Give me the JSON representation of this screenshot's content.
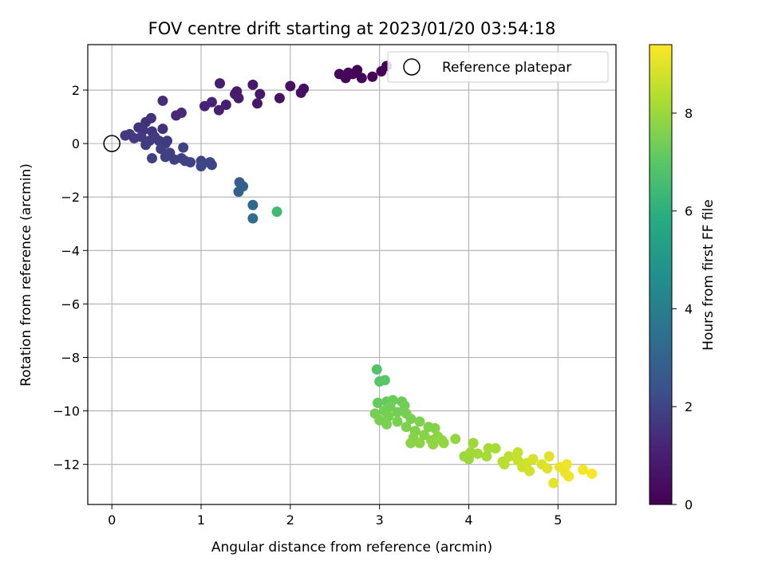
{
  "chart_data": {
    "type": "scatter",
    "title": "FOV centre drift starting at 2023/01/20 03:54:18",
    "xlabel": "Angular distance from reference (arcmin)",
    "ylabel": "Rotation from reference (arcmin)",
    "xlim": [
      -0.27,
      5.65
    ],
    "ylim": [
      -13.5,
      3.7
    ],
    "xticks": [
      0,
      1,
      2,
      3,
      4,
      5
    ],
    "yticks": [
      -12,
      -10,
      -8,
      -6,
      -4,
      -2,
      0,
      2
    ],
    "grid": true,
    "legend": {
      "placement": "top-right",
      "entries": [
        "Reference platepar"
      ]
    },
    "reference_point": {
      "x": 0,
      "y": 0
    },
    "colorbar": {
      "label": "Hours from first FF file",
      "min": 0,
      "max": 9.4,
      "ticks": [
        0,
        2,
        4,
        6,
        8
      ],
      "colormap": "viridis"
    },
    "points": [
      {
        "x": 2.55,
        "y": 2.6,
        "c": 0.2
      },
      {
        "x": 2.62,
        "y": 2.45,
        "c": 0.2
      },
      {
        "x": 2.7,
        "y": 2.6,
        "c": 0.15
      },
      {
        "x": 2.75,
        "y": 2.75,
        "c": 0.1
      },
      {
        "x": 2.8,
        "y": 2.45,
        "c": 0.1
      },
      {
        "x": 2.92,
        "y": 2.5,
        "c": 0.1
      },
      {
        "x": 3.02,
        "y": 2.7,
        "c": 0.05
      },
      {
        "x": 3.08,
        "y": 2.9,
        "c": 0.05
      },
      {
        "x": 2.65,
        "y": 2.65,
        "c": 0.2
      },
      {
        "x": 2.0,
        "y": 2.15,
        "c": 0.55
      },
      {
        "x": 2.15,
        "y": 2.05,
        "c": 0.55
      },
      {
        "x": 2.12,
        "y": 1.9,
        "c": 0.5
      },
      {
        "x": 1.88,
        "y": 1.7,
        "c": 0.6
      },
      {
        "x": 1.58,
        "y": 2.2,
        "c": 0.75
      },
      {
        "x": 1.66,
        "y": 1.85,
        "c": 0.75
      },
      {
        "x": 1.63,
        "y": 1.5,
        "c": 0.75
      },
      {
        "x": 1.38,
        "y": 1.85,
        "c": 0.9
      },
      {
        "x": 1.4,
        "y": 1.95,
        "c": 0.9
      },
      {
        "x": 1.42,
        "y": 1.7,
        "c": 0.9
      },
      {
        "x": 1.21,
        "y": 2.25,
        "c": 1.0
      },
      {
        "x": 1.28,
        "y": 1.45,
        "c": 1.0
      },
      {
        "x": 1.2,
        "y": 1.25,
        "c": 1.05
      },
      {
        "x": 1.12,
        "y": 1.55,
        "c": 1.1
      },
      {
        "x": 1.04,
        "y": 1.4,
        "c": 1.15
      },
      {
        "x": 0.78,
        "y": 1.15,
        "c": 1.3
      },
      {
        "x": 0.72,
        "y": 1.05,
        "c": 1.3
      },
      {
        "x": 0.57,
        "y": 1.6,
        "c": 1.4
      },
      {
        "x": 0.57,
        "y": 0.55,
        "c": 1.5
      },
      {
        "x": 0.44,
        "y": 0.95,
        "c": 1.5
      },
      {
        "x": 0.38,
        "y": 0.8,
        "c": 1.5
      },
      {
        "x": 0.3,
        "y": 0.6,
        "c": 1.6
      },
      {
        "x": 0.35,
        "y": 0.5,
        "c": 1.6
      },
      {
        "x": 0.45,
        "y": 0.45,
        "c": 1.6
      },
      {
        "x": 0.2,
        "y": 0.35,
        "c": 1.7
      },
      {
        "x": 0.15,
        "y": 0.3,
        "c": 1.7
      },
      {
        "x": 0.25,
        "y": 0.2,
        "c": 1.7
      },
      {
        "x": 0.33,
        "y": 0.25,
        "c": 1.7
      },
      {
        "x": 0.48,
        "y": 0.25,
        "c": 1.75
      },
      {
        "x": 0.53,
        "y": 0.1,
        "c": 1.75
      },
      {
        "x": 0.42,
        "y": 0.1,
        "c": 1.8
      },
      {
        "x": 0.38,
        "y": -0.05,
        "c": 1.8
      },
      {
        "x": 0.6,
        "y": 0.0,
        "c": 1.8
      },
      {
        "x": 0.62,
        "y": 0.1,
        "c": 1.8
      },
      {
        "x": 0.55,
        "y": -0.2,
        "c": 1.85
      },
      {
        "x": 0.65,
        "y": -0.35,
        "c": 1.85
      },
      {
        "x": 0.6,
        "y": -0.5,
        "c": 1.9
      },
      {
        "x": 0.7,
        "y": -0.6,
        "c": 1.9
      },
      {
        "x": 0.45,
        "y": -0.55,
        "c": 1.9
      },
      {
        "x": 0.78,
        "y": -0.55,
        "c": 1.9
      },
      {
        "x": 0.82,
        "y": -0.65,
        "c": 1.95
      },
      {
        "x": 0.88,
        "y": -0.7,
        "c": 1.95
      },
      {
        "x": 0.8,
        "y": -0.15,
        "c": 1.95
      },
      {
        "x": 1.0,
        "y": -0.65,
        "c": 2.0
      },
      {
        "x": 1.02,
        "y": -0.75,
        "c": 2.0
      },
      {
        "x": 1.1,
        "y": -0.7,
        "c": 2.05
      },
      {
        "x": 1.12,
        "y": -0.8,
        "c": 2.05
      },
      {
        "x": 1.0,
        "y": -0.85,
        "c": 2.1
      },
      {
        "x": 1.43,
        "y": -1.45,
        "c": 2.8
      },
      {
        "x": 1.47,
        "y": -1.6,
        "c": 2.85
      },
      {
        "x": 1.42,
        "y": -1.8,
        "c": 2.9
      },
      {
        "x": 1.58,
        "y": -2.3,
        "c": 3.2
      },
      {
        "x": 1.58,
        "y": -2.8,
        "c": 3.3
      },
      {
        "x": 1.85,
        "y": -2.55,
        "c": 6.4
      },
      {
        "x": 2.97,
        "y": -8.45,
        "c": 6.8
      },
      {
        "x": 3.0,
        "y": -8.9,
        "c": 6.9
      },
      {
        "x": 3.06,
        "y": -8.85,
        "c": 7.0
      },
      {
        "x": 2.98,
        "y": -9.7,
        "c": 7.2
      },
      {
        "x": 3.08,
        "y": -9.65,
        "c": 7.2
      },
      {
        "x": 3.15,
        "y": -9.6,
        "c": 7.3
      },
      {
        "x": 3.25,
        "y": -9.65,
        "c": 7.3
      },
      {
        "x": 3.28,
        "y": -9.8,
        "c": 7.35
      },
      {
        "x": 3.12,
        "y": -9.85,
        "c": 7.35
      },
      {
        "x": 2.95,
        "y": -10.1,
        "c": 7.4
      },
      {
        "x": 3.05,
        "y": -10.0,
        "c": 7.4
      },
      {
        "x": 3.2,
        "y": -10.05,
        "c": 7.4
      },
      {
        "x": 3.3,
        "y": -10.1,
        "c": 7.45
      },
      {
        "x": 3.1,
        "y": -10.2,
        "c": 7.45
      },
      {
        "x": 3.0,
        "y": -10.35,
        "c": 7.45
      },
      {
        "x": 3.08,
        "y": -10.5,
        "c": 7.5
      },
      {
        "x": 3.2,
        "y": -10.4,
        "c": 7.5
      },
      {
        "x": 3.35,
        "y": -10.3,
        "c": 7.5
      },
      {
        "x": 3.45,
        "y": -10.4,
        "c": 7.55
      },
      {
        "x": 3.3,
        "y": -10.6,
        "c": 7.55
      },
      {
        "x": 3.4,
        "y": -10.75,
        "c": 7.6
      },
      {
        "x": 3.55,
        "y": -10.6,
        "c": 7.6
      },
      {
        "x": 3.62,
        "y": -10.65,
        "c": 7.65
      },
      {
        "x": 3.5,
        "y": -10.9,
        "c": 7.7
      },
      {
        "x": 3.38,
        "y": -11.0,
        "c": 7.7
      },
      {
        "x": 3.35,
        "y": -11.2,
        "c": 7.75
      },
      {
        "x": 3.45,
        "y": -11.2,
        "c": 7.75
      },
      {
        "x": 3.58,
        "y": -11.1,
        "c": 7.8
      },
      {
        "x": 3.65,
        "y": -10.95,
        "c": 7.8
      },
      {
        "x": 3.7,
        "y": -11.1,
        "c": 7.85
      },
      {
        "x": 3.6,
        "y": -11.25,
        "c": 7.85
      },
      {
        "x": 3.72,
        "y": -11.2,
        "c": 7.9
      },
      {
        "x": 3.85,
        "y": -11.05,
        "c": 7.9
      },
      {
        "x": 3.95,
        "y": -11.7,
        "c": 8.0
      },
      {
        "x": 4.0,
        "y": -11.8,
        "c": 8.0
      },
      {
        "x": 4.02,
        "y": -11.55,
        "c": 8.05
      },
      {
        "x": 4.05,
        "y": -11.2,
        "c": 8.05
      },
      {
        "x": 4.1,
        "y": -11.6,
        "c": 8.1
      },
      {
        "x": 4.2,
        "y": -11.7,
        "c": 8.15
      },
      {
        "x": 4.22,
        "y": -11.4,
        "c": 8.15
      },
      {
        "x": 4.3,
        "y": -11.4,
        "c": 8.2
      },
      {
        "x": 4.38,
        "y": -11.9,
        "c": 8.4
      },
      {
        "x": 4.4,
        "y": -12.0,
        "c": 8.45
      },
      {
        "x": 4.45,
        "y": -11.7,
        "c": 8.5
      },
      {
        "x": 4.55,
        "y": -11.55,
        "c": 8.6
      },
      {
        "x": 4.55,
        "y": -11.85,
        "c": 8.65
      },
      {
        "x": 4.6,
        "y": -12.1,
        "c": 8.7
      },
      {
        "x": 4.65,
        "y": -11.95,
        "c": 8.75
      },
      {
        "x": 4.68,
        "y": -12.25,
        "c": 8.8
      },
      {
        "x": 4.72,
        "y": -11.8,
        "c": 8.85
      },
      {
        "x": 4.82,
        "y": -12.0,
        "c": 8.9
      },
      {
        "x": 4.88,
        "y": -12.15,
        "c": 9.0
      },
      {
        "x": 4.9,
        "y": -11.7,
        "c": 9.0
      },
      {
        "x": 4.95,
        "y": -12.7,
        "c": 9.05
      },
      {
        "x": 5.02,
        "y": -12.1,
        "c": 9.1
      },
      {
        "x": 5.08,
        "y": -12.3,
        "c": 9.15
      },
      {
        "x": 5.1,
        "y": -12.0,
        "c": 9.2
      },
      {
        "x": 5.12,
        "y": -12.45,
        "c": 9.2
      },
      {
        "x": 5.28,
        "y": -12.2,
        "c": 9.25
      },
      {
        "x": 5.38,
        "y": -12.35,
        "c": 9.3
      }
    ]
  }
}
